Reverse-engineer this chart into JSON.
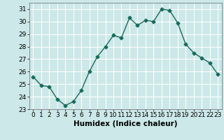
{
  "x": [
    0,
    1,
    2,
    3,
    4,
    5,
    6,
    7,
    8,
    9,
    10,
    11,
    12,
    13,
    14,
    15,
    16,
    17,
    18,
    19,
    20,
    21,
    22,
    23
  ],
  "y": [
    25.6,
    24.9,
    24.8,
    23.8,
    23.3,
    23.6,
    24.5,
    26.0,
    27.2,
    28.0,
    28.9,
    28.7,
    30.3,
    29.7,
    30.1,
    30.0,
    31.0,
    30.9,
    29.9,
    28.2,
    27.5,
    27.1,
    26.7,
    25.8
  ],
  "line_color": "#1a6b5a",
  "marker": "D",
  "marker_size": 2.5,
  "bg_color": "#cce8e8",
  "grid_color": "#ffffff",
  "xlabel": "Humidex (Indice chaleur)",
  "xlim": [
    -0.5,
    23.5
  ],
  "ylim": [
    23,
    31.5
  ],
  "yticks": [
    23,
    24,
    25,
    26,
    27,
    28,
    29,
    30,
    31
  ],
  "xlabel_fontsize": 7.5,
  "tick_fontsize": 6.5,
  "line_width": 1.0
}
